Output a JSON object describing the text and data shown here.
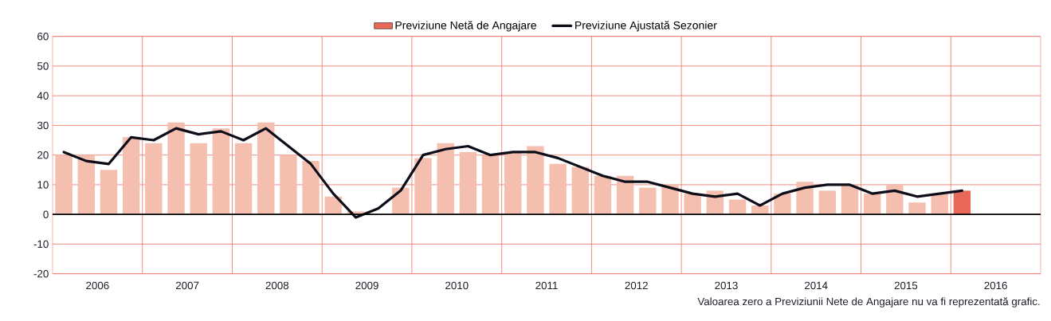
{
  "chart_data": {
    "type": "bar",
    "xlim": [
      2006,
      2017
    ],
    "ylim": [
      -20,
      60
    ],
    "xticks": [
      {
        "value": 2006.5,
        "label": "2006"
      },
      {
        "value": 2007.5,
        "label": "2007"
      },
      {
        "value": 2008.5,
        "label": "2008"
      },
      {
        "value": 2009.5,
        "label": "2009"
      },
      {
        "value": 2010.5,
        "label": "2010"
      },
      {
        "value": 2011.5,
        "label": "2011"
      },
      {
        "value": 2012.5,
        "label": "2012"
      },
      {
        "value": 2013.5,
        "label": "2013"
      },
      {
        "value": 2014.5,
        "label": "2014"
      },
      {
        "value": 2015.5,
        "label": "2015"
      },
      {
        "value": 2016.5,
        "label": "2016"
      },
      {
        "value": 2007,
        "label": null
      },
      {
        "value": 2008,
        "label": null
      },
      {
        "value": 2009,
        "label": null
      },
      {
        "value": 2010,
        "label": null
      },
      {
        "value": 2011,
        "label": null
      },
      {
        "value": 2012,
        "label": null
      },
      {
        "value": 2013,
        "label": null
      },
      {
        "value": 2014,
        "label": null
      },
      {
        "value": 2015,
        "label": null
      },
      {
        "value": 2016,
        "label": null
      }
    ],
    "yticks": [
      -20,
      -10,
      0,
      10,
      20,
      30,
      40,
      50,
      60
    ],
    "grid": true,
    "legend": "top",
    "x": [
      2006.125,
      2006.375,
      2006.625,
      2006.875,
      2007.125,
      2007.375,
      2007.625,
      2007.875,
      2008.125,
      2008.375,
      2008.625,
      2008.875,
      2009.125,
      2009.375,
      2009.625,
      2009.875,
      2010.125,
      2010.375,
      2010.625,
      2010.875,
      2011.125,
      2011.375,
      2011.625,
      2011.875,
      2012.125,
      2012.375,
      2012.625,
      2012.875,
      2013.125,
      2013.375,
      2013.625,
      2013.875,
      2014.125,
      2014.375,
      2014.625,
      2014.875,
      2015.125,
      2015.375,
      2015.625,
      2015.875,
      2016.125
    ],
    "series": [
      {
        "name": "Previziune Netă de Angajare",
        "values": [
          20,
          20,
          15,
          26,
          24,
          31,
          24,
          29,
          24,
          31,
          20,
          18,
          6,
          1,
          0,
          9,
          19,
          24,
          21,
          20,
          21,
          23,
          17,
          16,
          13,
          13,
          9,
          10,
          7,
          8,
          5,
          3,
          7,
          11,
          8,
          10,
          7,
          10,
          4,
          7,
          8
        ],
        "colors": [
          "#f5bfb0",
          "#f5bfb0",
          "#f5bfb0",
          "#f5bfb0",
          "#f5bfb0",
          "#f5bfb0",
          "#f5bfb0",
          "#f5bfb0",
          "#f5bfb0",
          "#f5bfb0",
          "#f5bfb0",
          "#f5bfb0",
          "#f5bfb0",
          "#f5bfb0",
          "#f5bfb0",
          "#f5bfb0",
          "#f5bfb0",
          "#f5bfb0",
          "#f5bfb0",
          "#f5bfb0",
          "#f5bfb0",
          "#f5bfb0",
          "#f5bfb0",
          "#f5bfb0",
          "#f5bfb0",
          "#f5bfb0",
          "#f5bfb0",
          "#f5bfb0",
          "#f5bfb0",
          "#f5bfb0",
          "#f5bfb0",
          "#f5bfb0",
          "#f5bfb0",
          "#f5bfb0",
          "#f5bfb0",
          "#f5bfb0",
          "#f5bfb0",
          "#f5bfb0",
          "#f5bfb0",
          "#f5bfb0",
          "#e8695a"
        ]
      },
      {
        "name": "Previziune Ajustată Sezonier",
        "type": "line",
        "color": "#0d0d1a",
        "values": [
          21,
          18,
          17,
          26,
          25,
          29,
          27,
          28,
          25,
          29,
          23,
          17,
          7,
          -1,
          2,
          8,
          20,
          22,
          23,
          20,
          21,
          21,
          19,
          16,
          13,
          11,
          11,
          9,
          7,
          6,
          7,
          3,
          7,
          9,
          10,
          10,
          7,
          8,
          6,
          7,
          8
        ]
      }
    ],
    "ref_lines": [
      {
        "axis": "y",
        "value": 0,
        "color": "#000000"
      }
    ],
    "annotations": [
      "Valoarea zero a Previziunii Nete de Angajare nu va fi reprezentată grafic."
    ]
  }
}
